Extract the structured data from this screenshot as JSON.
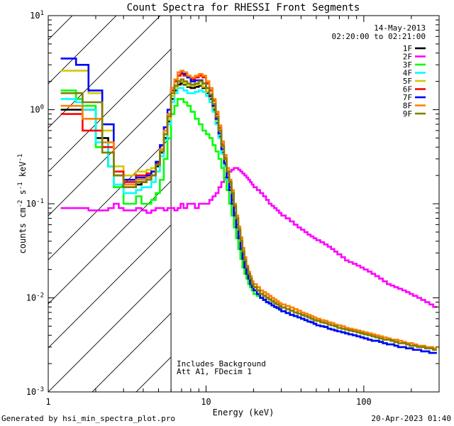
{
  "chart_data": {
    "type": "line",
    "title": "Count Spectra for RHESSI Front Segments",
    "xlabel": "Energy (keV)",
    "xscale": "log",
    "yscale": "log",
    "xlim": [
      1,
      300
    ],
    "ylim": [
      0.001,
      10
    ],
    "x_ticks": [
      {
        "v": 1,
        "label": "1"
      },
      {
        "v": 10,
        "label": "10"
      },
      {
        "v": 100,
        "label": "100"
      }
    ],
    "y_ticks": [
      {
        "v": 0.001,
        "base": "10",
        "exp": "-3"
      },
      {
        "v": 0.01,
        "base": "10",
        "exp": "-2"
      },
      {
        "v": 0.1,
        "base": "10",
        "exp": "-1"
      },
      {
        "v": 1,
        "base": "10",
        "exp": "0"
      },
      {
        "v": 10,
        "base": "10",
        "exp": "1"
      }
    ],
    "hatched_region_max_energy": 6,
    "date_label": "14-May-2013",
    "time_range_label": "02:20:00 to 02:21:00",
    "annotations": [
      "Includes Background",
      "Att A1, FDecim  1"
    ],
    "edges": [
      1.2,
      1.35,
      1.5,
      1.65,
      1.8,
      2.0,
      2.2,
      2.4,
      2.6,
      2.8,
      3.0,
      3.3,
      3.6,
      3.9,
      4.2,
      4.5,
      4.8,
      5.1,
      5.4,
      5.7,
      6.0,
      6.3,
      6.6,
      6.9,
      7.2,
      7.6,
      8.0,
      8.5,
      9.0,
      9.5,
      10.0,
      10.5,
      11.0,
      11.5,
      12.0,
      12.5,
      13.0,
      13.5,
      14.0,
      14.5,
      15.0,
      15.5,
      16.0,
      16.5,
      17.0,
      17.5,
      18.0,
      18.5,
      19.0,
      19.5,
      20.0,
      21.0,
      22.0,
      23.0,
      24.0,
      25.0,
      26.0,
      27.0,
      28.0,
      29.0,
      30.0,
      32.0,
      34.0,
      36.0,
      38.0,
      40.0,
      42.0,
      44.0,
      46.0,
      48.0,
      50.0,
      53.0,
      56.0,
      59.0,
      62.0,
      65.0,
      68.0,
      72.0,
      76.0,
      80.0,
      85.0,
      90.0,
      95.0,
      100.0,
      106.0,
      112.0,
      118.0,
      125.0,
      132.0,
      140.0,
      148.0,
      156.0,
      165.0,
      175.0,
      185.0,
      195.0,
      205.0,
      218.0,
      231.0,
      245.0,
      260.0,
      275.0,
      290.0
    ],
    "series": [
      {
        "name": "1F",
        "color": "#000000",
        "values": [
          1.0,
          1.0,
          1.0,
          1.0,
          1.0,
          0.5,
          0.5,
          0.25,
          0.15,
          0.15,
          0.15,
          0.15,
          0.16,
          0.17,
          0.18,
          0.2,
          0.25,
          0.35,
          0.5,
          0.75,
          1.3,
          1.6,
          1.85,
          1.9,
          1.85,
          1.75,
          1.7,
          1.75,
          1.8,
          1.7,
          1.5,
          1.3,
          1.0,
          0.72,
          0.52,
          0.35,
          0.26,
          0.19,
          0.15,
          0.11,
          0.08,
          0.06,
          0.045,
          0.034,
          0.026,
          0.021,
          0.018,
          0.016,
          0.014,
          0.013,
          0.012,
          0.011,
          0.01,
          0.0095,
          0.009,
          0.0087,
          0.0083,
          0.008,
          0.0078,
          0.0075,
          0.0072,
          0.0069,
          0.0066,
          0.0064,
          0.0062,
          0.006,
          0.0058,
          0.0056,
          0.0055,
          0.0053,
          0.0051,
          0.005,
          0.0049,
          0.0047,
          0.0046,
          0.0045,
          0.0044,
          0.0043,
          0.0042,
          0.0041,
          0.004,
          0.0039,
          0.0038,
          0.0037,
          0.0036,
          0.0035,
          0.0035,
          0.0034,
          0.0033,
          0.0032,
          0.0032,
          0.0031,
          0.003,
          0.003,
          0.0029,
          0.0029,
          0.0028,
          0.0028,
          0.0027,
          0.0027,
          0.0026,
          0.0026
        ]
      },
      {
        "name": "2F",
        "color": "#ff00ff",
        "values": [
          0.09,
          0.09,
          0.09,
          0.09,
          0.085,
          0.085,
          0.085,
          0.09,
          0.1,
          0.09,
          0.085,
          0.085,
          0.09,
          0.085,
          0.08,
          0.085,
          0.09,
          0.09,
          0.085,
          0.09,
          0.09,
          0.085,
          0.09,
          0.1,
          0.09,
          0.1,
          0.1,
          0.09,
          0.1,
          0.1,
          0.1,
          0.11,
          0.12,
          0.13,
          0.15,
          0.17,
          0.19,
          0.21,
          0.22,
          0.23,
          0.24,
          0.24,
          0.23,
          0.22,
          0.21,
          0.2,
          0.19,
          0.18,
          0.17,
          0.16,
          0.15,
          0.14,
          0.13,
          0.12,
          0.11,
          0.1,
          0.095,
          0.09,
          0.085,
          0.08,
          0.075,
          0.07,
          0.065,
          0.06,
          0.056,
          0.053,
          0.05,
          0.047,
          0.045,
          0.043,
          0.041,
          0.039,
          0.037,
          0.035,
          0.033,
          0.031,
          0.029,
          0.027,
          0.025,
          0.024,
          0.023,
          0.022,
          0.021,
          0.02,
          0.019,
          0.018,
          0.017,
          0.016,
          0.015,
          0.014,
          0.0135,
          0.013,
          0.0125,
          0.012,
          0.0115,
          0.011,
          0.0105,
          0.01,
          0.0095,
          0.009,
          0.0085,
          0.008
        ]
      },
      {
        "name": "3F",
        "color": "#00ff00",
        "values": [
          1.6,
          1.6,
          1.3,
          1.1,
          1.1,
          0.4,
          0.4,
          0.25,
          0.15,
          0.15,
          0.1,
          0.1,
          0.12,
          0.1,
          0.1,
          0.11,
          0.13,
          0.18,
          0.3,
          0.5,
          0.9,
          1.1,
          1.3,
          1.3,
          1.2,
          1.1,
          0.95,
          0.8,
          0.7,
          0.6,
          0.55,
          0.5,
          0.42,
          0.36,
          0.3,
          0.24,
          0.18,
          0.14,
          0.1,
          0.075,
          0.056,
          0.043,
          0.033,
          0.026,
          0.021,
          0.018,
          0.016,
          0.014,
          0.013,
          0.012,
          0.011,
          0.0105,
          0.01,
          0.0095,
          0.009,
          0.0087,
          0.0083,
          0.008,
          0.0078,
          0.0075,
          0.0072,
          0.0069,
          0.0066,
          0.0064,
          0.0062,
          0.006,
          0.0058,
          0.0056,
          0.0055,
          0.0053,
          0.0051,
          0.005,
          0.0049,
          0.0047,
          0.0046,
          0.0045,
          0.0044,
          0.0043,
          0.0042,
          0.0041,
          0.004,
          0.0039,
          0.0038,
          0.0037,
          0.0036,
          0.0035,
          0.0035,
          0.0034,
          0.0033,
          0.0032,
          0.0032,
          0.0031,
          0.003,
          0.003,
          0.0029,
          0.0029,
          0.0028,
          0.0028,
          0.0027,
          0.0027,
          0.0026,
          0.0026
        ]
      },
      {
        "name": "4F",
        "color": "#00ffff",
        "values": [
          1.3,
          1.3,
          1.2,
          1.0,
          1.0,
          0.45,
          0.45,
          0.25,
          0.16,
          0.16,
          0.13,
          0.13,
          0.14,
          0.15,
          0.15,
          0.17,
          0.22,
          0.32,
          0.48,
          0.7,
          1.2,
          1.5,
          1.7,
          1.7,
          1.6,
          1.5,
          1.5,
          1.55,
          1.6,
          1.55,
          1.4,
          1.2,
          0.95,
          0.7,
          0.5,
          0.34,
          0.25,
          0.18,
          0.14,
          0.1,
          0.075,
          0.056,
          0.043,
          0.033,
          0.026,
          0.021,
          0.018,
          0.016,
          0.014,
          0.013,
          0.012,
          0.011,
          0.01,
          0.0095,
          0.009,
          0.0087,
          0.0083,
          0.008,
          0.0078,
          0.0075,
          0.0072,
          0.0069,
          0.0066,
          0.0064,
          0.0062,
          0.006,
          0.0058,
          0.0056,
          0.0055,
          0.0053,
          0.0051,
          0.005,
          0.0049,
          0.0047,
          0.0046,
          0.0045,
          0.0044,
          0.0043,
          0.0042,
          0.0041,
          0.004,
          0.0039,
          0.0038,
          0.0037,
          0.0036,
          0.0035,
          0.0035,
          0.0034,
          0.0033,
          0.0032,
          0.0032,
          0.0031,
          0.003,
          0.003,
          0.0029,
          0.0029,
          0.0028,
          0.0028,
          0.0027,
          0.0027,
          0.0026,
          0.0026
        ]
      },
      {
        "name": "5F",
        "color": "#d4c800",
        "values": [
          2.6,
          2.6,
          2.6,
          2.6,
          1.5,
          1.5,
          0.6,
          0.6,
          0.25,
          0.25,
          0.2,
          0.2,
          0.22,
          0.22,
          0.23,
          0.24,
          0.28,
          0.38,
          0.55,
          0.8,
          1.4,
          1.7,
          2.0,
          2.0,
          1.9,
          1.8,
          1.8,
          1.85,
          1.85,
          1.75,
          1.55,
          1.35,
          1.05,
          0.78,
          0.56,
          0.38,
          0.28,
          0.2,
          0.16,
          0.12,
          0.09,
          0.066,
          0.05,
          0.038,
          0.029,
          0.023,
          0.019,
          0.017,
          0.015,
          0.014,
          0.013,
          0.012,
          0.011,
          0.0105,
          0.01,
          0.0096,
          0.0092,
          0.0088,
          0.0085,
          0.0082,
          0.0079,
          0.0076,
          0.0073,
          0.007,
          0.0068,
          0.0066,
          0.0064,
          0.0062,
          0.006,
          0.0058,
          0.0057,
          0.0055,
          0.0054,
          0.0052,
          0.0051,
          0.005,
          0.0048,
          0.0047,
          0.0046,
          0.0045,
          0.0044,
          0.0043,
          0.0042,
          0.0041,
          0.004,
          0.0039,
          0.0038,
          0.0037,
          0.0036,
          0.0036,
          0.0035,
          0.0034,
          0.0033,
          0.0033,
          0.0032,
          0.0031,
          0.0031,
          0.003,
          0.003,
          0.0029,
          0.0029,
          0.0028
        ]
      },
      {
        "name": "6F",
        "color": "#ff0000",
        "values": [
          0.9,
          0.9,
          0.9,
          0.6,
          0.6,
          0.6,
          0.4,
          0.4,
          0.22,
          0.22,
          0.17,
          0.17,
          0.2,
          0.2,
          0.21,
          0.22,
          0.27,
          0.38,
          0.55,
          0.85,
          1.6,
          2.0,
          2.3,
          2.4,
          2.3,
          2.2,
          2.1,
          2.2,
          2.3,
          2.2,
          1.9,
          1.6,
          1.25,
          0.9,
          0.64,
          0.43,
          0.31,
          0.22,
          0.17,
          0.13,
          0.095,
          0.07,
          0.053,
          0.04,
          0.031,
          0.025,
          0.021,
          0.018,
          0.016,
          0.014,
          0.013,
          0.012,
          0.011,
          0.0105,
          0.01,
          0.0096,
          0.0092,
          0.0088,
          0.0085,
          0.0082,
          0.0079,
          0.0076,
          0.0073,
          0.007,
          0.0068,
          0.0066,
          0.0064,
          0.0062,
          0.006,
          0.0058,
          0.0057,
          0.0055,
          0.0054,
          0.0052,
          0.0051,
          0.005,
          0.0048,
          0.0047,
          0.0046,
          0.0045,
          0.0044,
          0.0043,
          0.0042,
          0.0041,
          0.004,
          0.0039,
          0.0038,
          0.0037,
          0.0036,
          0.0036,
          0.0035,
          0.0034,
          0.0033,
          0.0033,
          0.0032,
          0.0031,
          0.0031,
          0.003,
          0.003,
          0.0029,
          0.0029,
          0.0028
        ]
      },
      {
        "name": "7F",
        "color": "#0000ff",
        "values": [
          3.5,
          3.5,
          3.0,
          3.0,
          1.6,
          1.6,
          0.7,
          0.7,
          0.2,
          0.2,
          0.18,
          0.18,
          0.19,
          0.19,
          0.2,
          0.22,
          0.28,
          0.42,
          0.65,
          1.0,
          1.7,
          2.1,
          2.5,
          2.5,
          2.4,
          2.2,
          2.0,
          2.05,
          2.05,
          1.9,
          1.7,
          1.4,
          1.1,
          0.8,
          0.56,
          0.38,
          0.27,
          0.19,
          0.14,
          0.1,
          0.075,
          0.056,
          0.043,
          0.033,
          0.026,
          0.021,
          0.018,
          0.016,
          0.014,
          0.013,
          0.012,
          0.011,
          0.01,
          0.0095,
          0.009,
          0.0087,
          0.0083,
          0.008,
          0.0078,
          0.0075,
          0.0072,
          0.0069,
          0.0066,
          0.0064,
          0.0062,
          0.006,
          0.0058,
          0.0056,
          0.0055,
          0.0053,
          0.0051,
          0.005,
          0.0049,
          0.0047,
          0.0046,
          0.0045,
          0.0044,
          0.0043,
          0.0042,
          0.0041,
          0.004,
          0.0039,
          0.0038,
          0.0037,
          0.0036,
          0.0035,
          0.0035,
          0.0034,
          0.0033,
          0.0032,
          0.0032,
          0.0031,
          0.003,
          0.003,
          0.0029,
          0.0029,
          0.0028,
          0.0028,
          0.0027,
          0.0027,
          0.0026,
          0.0026
        ]
      },
      {
        "name": "8F",
        "color": "#ff8000",
        "values": [
          1.1,
          1.1,
          1.1,
          0.8,
          0.8,
          0.8,
          0.45,
          0.45,
          0.2,
          0.2,
          0.16,
          0.16,
          0.18,
          0.18,
          0.19,
          0.2,
          0.26,
          0.38,
          0.6,
          0.9,
          1.7,
          2.1,
          2.5,
          2.6,
          2.5,
          2.3,
          2.2,
          2.3,
          2.4,
          2.3,
          2.0,
          1.7,
          1.3,
          0.95,
          0.68,
          0.46,
          0.33,
          0.24,
          0.18,
          0.14,
          0.1,
          0.075,
          0.057,
          0.044,
          0.034,
          0.027,
          0.022,
          0.019,
          0.017,
          0.015,
          0.014,
          0.013,
          0.012,
          0.0115,
          0.011,
          0.0105,
          0.01,
          0.0096,
          0.0092,
          0.0088,
          0.0085,
          0.0082,
          0.0079,
          0.0076,
          0.0073,
          0.007,
          0.0068,
          0.0066,
          0.0064,
          0.0062,
          0.006,
          0.0058,
          0.0057,
          0.0055,
          0.0054,
          0.0052,
          0.0051,
          0.005,
          0.0048,
          0.0047,
          0.0046,
          0.0045,
          0.0044,
          0.0043,
          0.0042,
          0.0041,
          0.004,
          0.0039,
          0.0038,
          0.0037,
          0.0036,
          0.0036,
          0.0035,
          0.0034,
          0.0033,
          0.0033,
          0.0032,
          0.0031,
          0.0031,
          0.003,
          0.003,
          0.0029
        ]
      },
      {
        "name": "9F",
        "color": "#808000",
        "values": [
          1.5,
          1.5,
          1.5,
          1.2,
          1.2,
          1.2,
          0.35,
          0.35,
          0.2,
          0.2,
          0.15,
          0.15,
          0.17,
          0.17,
          0.18,
          0.2,
          0.26,
          0.36,
          0.55,
          0.85,
          1.5,
          1.8,
          2.0,
          2.1,
          2.0,
          1.9,
          1.85,
          1.9,
          2.0,
          1.9,
          1.7,
          1.45,
          1.15,
          0.84,
          0.6,
          0.41,
          0.3,
          0.22,
          0.17,
          0.13,
          0.095,
          0.07,
          0.053,
          0.04,
          0.031,
          0.025,
          0.021,
          0.018,
          0.016,
          0.014,
          0.013,
          0.012,
          0.011,
          0.0105,
          0.01,
          0.0096,
          0.0092,
          0.0088,
          0.0085,
          0.0082,
          0.0079,
          0.0076,
          0.0073,
          0.007,
          0.0068,
          0.0066,
          0.0064,
          0.0062,
          0.006,
          0.0058,
          0.0057,
          0.0055,
          0.0054,
          0.0052,
          0.0051,
          0.005,
          0.0048,
          0.0047,
          0.0046,
          0.0045,
          0.0044,
          0.0043,
          0.0042,
          0.0041,
          0.004,
          0.0039,
          0.0038,
          0.0037,
          0.0036,
          0.0036,
          0.0035,
          0.0034,
          0.0033,
          0.0033,
          0.0032,
          0.0031,
          0.0031,
          0.003,
          0.003,
          0.0029,
          0.0029,
          0.0028
        ]
      }
    ]
  },
  "footer": {
    "generated_by": "Generated by hsi_min_spectra_plot.pro",
    "timestamp": "20-Apr-2023 01:40"
  }
}
